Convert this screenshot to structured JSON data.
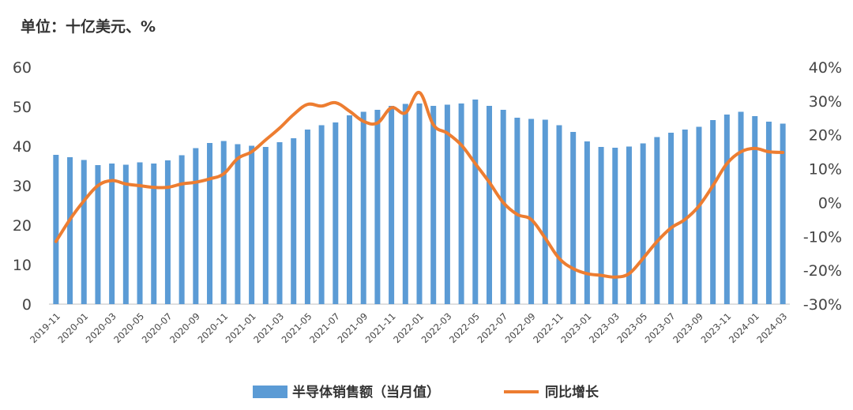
{
  "unit_label": "单位：十亿美元、%",
  "chart_data": {
    "type": "bar",
    "categories": [
      "2019-11",
      "2019-12",
      "2020-01",
      "2020-02",
      "2020-03",
      "2020-04",
      "2020-05",
      "2020-06",
      "2020-07",
      "2020-08",
      "2020-09",
      "2020-10",
      "2020-11",
      "2020-12",
      "2021-01",
      "2021-02",
      "2021-03",
      "2021-04",
      "2021-05",
      "2021-06",
      "2021-07",
      "2021-08",
      "2021-09",
      "2021-10",
      "2021-11",
      "2021-12",
      "2022-01",
      "2022-02",
      "2022-03",
      "2022-04",
      "2022-05",
      "2022-06",
      "2022-07",
      "2022-08",
      "2022-09",
      "2022-10",
      "2022-11",
      "2022-12",
      "2023-01",
      "2023-02",
      "2023-03",
      "2023-04",
      "2023-05",
      "2023-06",
      "2023-07",
      "2023-08",
      "2023-09",
      "2023-10",
      "2023-11",
      "2023-12",
      "2024-01",
      "2024-02",
      "2024-03"
    ],
    "x_tick_labels": [
      "2019-11",
      "2020-01",
      "2020-03",
      "2020-05",
      "2020-07",
      "2020-09",
      "2020-11",
      "2021-01",
      "2021-03",
      "2021-05",
      "2021-07",
      "2021-09",
      "2021-11",
      "2022-01",
      "2022-03",
      "2022-05",
      "2022-07",
      "2022-09",
      "2022-11",
      "2023-01",
      "2023-03",
      "2023-05",
      "2023-07",
      "2023-09",
      "2023-11",
      "2024-01",
      "2024-03"
    ],
    "series": [
      {
        "name": "半导体销售额（当月值）",
        "type": "bar",
        "axis": "left",
        "color": "#5b9bd5",
        "values": [
          37.8,
          37.2,
          36.5,
          35.2,
          35.6,
          35.3,
          35.9,
          35.6,
          36.4,
          37.7,
          39.5,
          40.8,
          41.3,
          40.5,
          40.1,
          39.8,
          41.0,
          42.0,
          44.2,
          45.3,
          46.0,
          47.8,
          48.7,
          49.2,
          50.2,
          50.7,
          50.8,
          50.2,
          50.5,
          50.8,
          51.8,
          50.2,
          49.2,
          47.2,
          46.9,
          46.7,
          45.3,
          43.6,
          41.2,
          39.8,
          39.6,
          39.9,
          40.7,
          42.3,
          43.4,
          44.2,
          44.9,
          46.6,
          48.0,
          48.7,
          47.6,
          46.2,
          45.7
        ]
      },
      {
        "name": "同比增长",
        "type": "line",
        "axis": "right",
        "color": "#ed7d31",
        "values": [
          -11.5,
          -5,
          0.5,
          5,
          6.5,
          5.5,
          5,
          4.5,
          4.5,
          5.5,
          6,
          7,
          8.5,
          13,
          15,
          18.5,
          22,
          26,
          29,
          28.5,
          29.5,
          27,
          24,
          23.5,
          28,
          26.5,
          32.5,
          23,
          20.5,
          17,
          11.5,
          6,
          0,
          -3.5,
          -5,
          -10.5,
          -16.5,
          -19.5,
          -21,
          -21.5,
          -22,
          -21,
          -16.5,
          -11.5,
          -7.5,
          -5,
          -1,
          5,
          11.5,
          15,
          16,
          15,
          14.8
        ]
      }
    ],
    "y_left": {
      "ylim": [
        0,
        60
      ],
      "ticks": [
        "0",
        "10",
        "20",
        "30",
        "40",
        "50",
        "60"
      ]
    },
    "y_right": {
      "ylim": [
        -30,
        40
      ],
      "ticks": [
        "-30%",
        "-20%",
        "-10%",
        "0%",
        "10%",
        "20%",
        "30%",
        "40%"
      ]
    },
    "grid": false,
    "legend_position": "bottom"
  }
}
